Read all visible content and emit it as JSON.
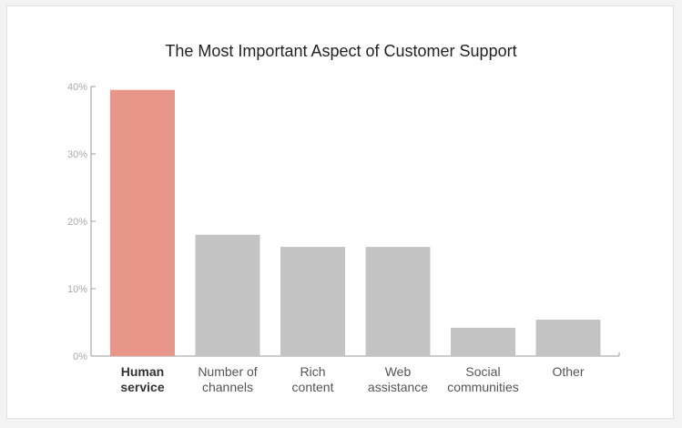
{
  "chart_data": {
    "type": "bar",
    "title": "The Most Important Aspect of Customer Support",
    "categories": [
      [
        "Human",
        "service"
      ],
      [
        "Number of",
        "channels"
      ],
      [
        "Rich",
        "content"
      ],
      [
        "Web",
        "assistance"
      ],
      [
        "Social",
        "communities"
      ],
      [
        "Other"
      ]
    ],
    "values": [
      39.5,
      18,
      16.2,
      16.2,
      4.2,
      5.4
    ],
    "highlight_index": 0,
    "y_ticks": [
      "0%",
      "10%",
      "20%",
      "30%",
      "40%"
    ],
    "ylim": [
      0,
      40
    ],
    "grid": false,
    "colors": {
      "highlight": "#e8968a",
      "bar": "#c4c4c4",
      "axis": "#999999"
    }
  }
}
